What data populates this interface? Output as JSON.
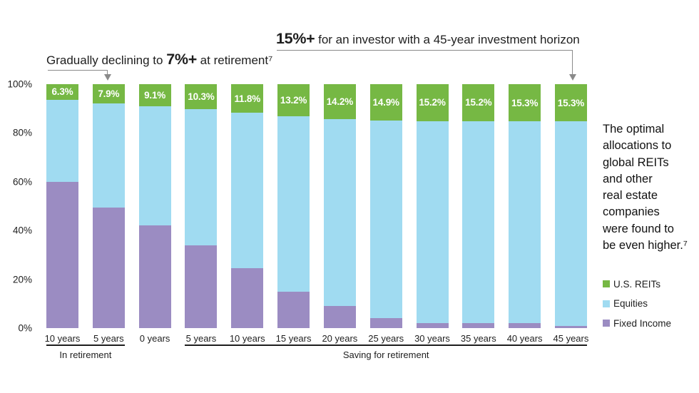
{
  "annotations": {
    "declining": {
      "prefix": "Gradually declining to ",
      "highlight": "7%+",
      "suffix": " at retirement⁷"
    },
    "horizon": {
      "highlight": "15%+",
      "suffix": " for an investor with a 45-year investment horizon"
    }
  },
  "side_note": {
    "lines": [
      "The optimal",
      "allocations to",
      "global REITs",
      "and other",
      "real estate",
      "companies",
      "were found to",
      "be even higher.⁷"
    ]
  },
  "legend": {
    "items": [
      {
        "name": "us-reits",
        "label": "U.S. REITs",
        "color": "#76b844"
      },
      {
        "name": "equities",
        "label": "Equities",
        "color": "#a0dbf1"
      },
      {
        "name": "fixed-income",
        "label": "Fixed Income",
        "color": "#9b8cc2"
      }
    ]
  },
  "colors": {
    "reits_green": "#76b844",
    "equities_blue": "#a0dbf1",
    "fixed_income_purple": "#9b8cc2",
    "annotation_line_gray": "#8a8a8a",
    "text_black": "#1e1e1e",
    "bar_label_white": "#ffffff"
  },
  "chart_data": {
    "type": "bar",
    "stacked": true,
    "title": "",
    "xlabel": "",
    "ylabel": "",
    "ylim": [
      0,
      100
    ],
    "y_ticks": [
      "100%",
      "80%",
      "60%",
      "40%",
      "20%",
      "0%"
    ],
    "categories": [
      "10 years",
      "5 years",
      "0 years",
      "5 years",
      "10 years",
      "15 years",
      "20 years",
      "25 years",
      "30 years",
      "35 years",
      "40 years",
      "45 years"
    ],
    "series": [
      {
        "name": "U.S. REITs",
        "color": "#76b844",
        "values": [
          6.3,
          7.9,
          9.1,
          10.3,
          11.8,
          13.2,
          14.2,
          14.9,
          15.2,
          15.2,
          15.3,
          15.3
        ],
        "labels": [
          "6.3%",
          "7.9%",
          "9.1%",
          "10.3%",
          "11.8%",
          "13.2%",
          "14.2%",
          "14.9%",
          "15.2%",
          "15.2%",
          "15.3%",
          "15.3%"
        ]
      },
      {
        "name": "Equities",
        "color": "#a0dbf1",
        "values": [
          33.7,
          42.6,
          48.9,
          55.7,
          63.7,
          71.8,
          76.8,
          81.1,
          82.8,
          82.8,
          82.7,
          83.7
        ],
        "labels": []
      },
      {
        "name": "Fixed Income",
        "color": "#9b8cc2",
        "values": [
          60,
          49.5,
          42,
          34,
          24.5,
          15,
          9,
          4,
          2,
          2,
          2,
          1
        ],
        "labels": []
      }
    ],
    "axis_groups": [
      {
        "label": "In retirement",
        "start_bar": 0,
        "end_bar": 1
      },
      {
        "label": "Saving for retirement",
        "start_bar": 3,
        "end_bar": 11
      }
    ],
    "legend_position": "right",
    "grid": false
  }
}
